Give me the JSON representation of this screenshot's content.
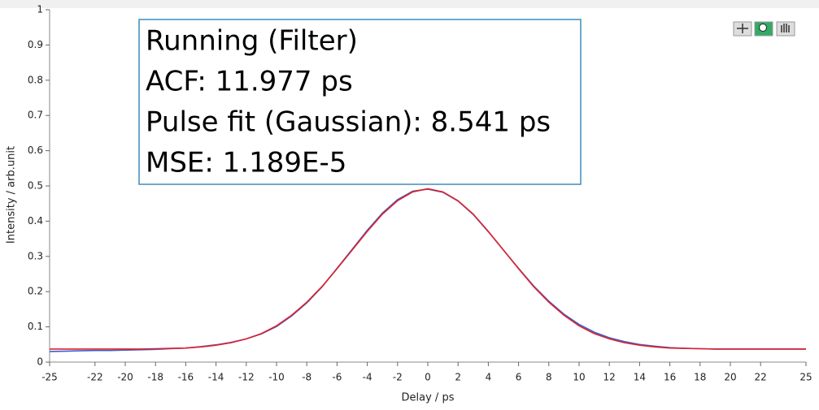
{
  "chart_data": {
    "type": "line",
    "xlabel": "Delay / ps",
    "ylabel": "Intensity / arb.unit",
    "annotation": [
      "Running (Filter)",
      "ACF: 11.977 ps",
      "Pulse fit (Gaussian): 8.541 ps",
      "MSE: 1.189E-5"
    ],
    "xlim": [
      -25,
      25
    ],
    "ylim": [
      0,
      1
    ],
    "xticks": [
      -25,
      -22,
      -20,
      -18,
      -16,
      -14,
      -12,
      -10,
      -8,
      -6,
      -4,
      -2,
      0,
      2,
      4,
      6,
      8,
      10,
      12,
      14,
      16,
      18,
      20,
      22,
      25
    ],
    "yticks": [
      0,
      0.1,
      0.2,
      0.3,
      0.4,
      0.5,
      0.6,
      0.7,
      0.8,
      0.9,
      1
    ],
    "x": [
      -25,
      -24,
      -23,
      -22,
      -21,
      -20,
      -19,
      -18,
      -17,
      -16,
      -15,
      -14,
      -13,
      -12,
      -11,
      -10,
      -9,
      -8,
      -7,
      -6,
      -5,
      -4,
      -3,
      -2,
      -1,
      0,
      1,
      2,
      3,
      4,
      5,
      6,
      7,
      8,
      9,
      10,
      11,
      12,
      13,
      14,
      15,
      16,
      17,
      18,
      19,
      20,
      21,
      22,
      23,
      24,
      25
    ],
    "series": [
      {
        "color": "#3a5fcd",
        "values": [
          0.03,
          0.031,
          0.032,
          0.033,
          0.033,
          0.034,
          0.035,
          0.036,
          0.038,
          0.04,
          0.044,
          0.049,
          0.056,
          0.066,
          0.08,
          0.101,
          0.131,
          0.168,
          0.213,
          0.266,
          0.32,
          0.374,
          0.423,
          0.461,
          0.485,
          0.491,
          0.482,
          0.457,
          0.419,
          0.37,
          0.318,
          0.266,
          0.216,
          0.173,
          0.136,
          0.107,
          0.085,
          0.069,
          0.058,
          0.05,
          0.045,
          0.041,
          0.039,
          0.038,
          0.037,
          0.037,
          0.037,
          0.037,
          0.037,
          0.037,
          0.037
        ]
      },
      {
        "color": "#e0202a",
        "values": [
          0.037,
          0.037,
          0.037,
          0.037,
          0.037,
          0.037,
          0.037,
          0.038,
          0.039,
          0.04,
          0.043,
          0.048,
          0.055,
          0.066,
          0.081,
          0.103,
          0.133,
          0.17,
          0.214,
          0.265,
          0.318,
          0.371,
          0.42,
          0.458,
          0.483,
          0.492,
          0.483,
          0.458,
          0.42,
          0.371,
          0.318,
          0.265,
          0.214,
          0.17,
          0.133,
          0.103,
          0.081,
          0.066,
          0.055,
          0.048,
          0.043,
          0.04,
          0.039,
          0.038,
          0.037,
          0.037,
          0.037,
          0.037,
          0.037,
          0.037,
          0.037
        ]
      }
    ]
  }
}
